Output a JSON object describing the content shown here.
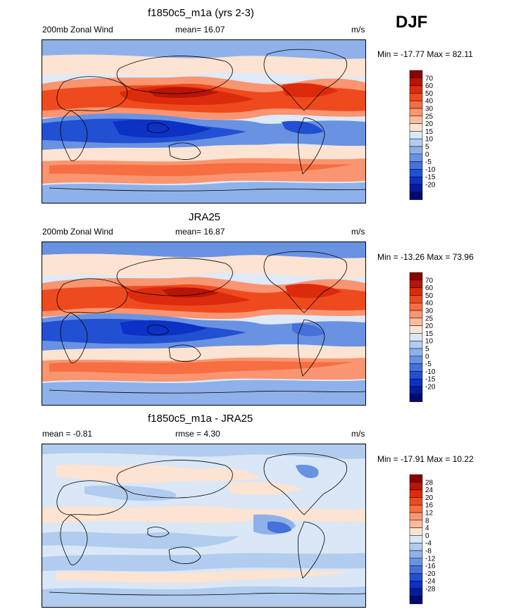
{
  "season": "DJF",
  "panels": [
    {
      "title": "f1850c5_m1a (yrs 2-3)",
      "left_label": "200mb Zonal Wind",
      "center_label": "mean=  16.07",
      "units": "m/s",
      "minmax": "Min = -17.77 Max =  82.11",
      "colorbar": [
        "70",
        "60",
        "50",
        "40",
        "30",
        "25",
        "20",
        "15",
        "10",
        "5",
        "0",
        "-5",
        "-10",
        "-15",
        "-20"
      ],
      "colors": [
        "#8b0000",
        "#b81407",
        "#dc2b0c",
        "#ef4a1e",
        "#f66e42",
        "#f99570",
        "#fcbc9b",
        "#fde3d2",
        "#d9e7f6",
        "#b2ccef",
        "#8eb1ea",
        "#6a92e3",
        "#4670da",
        "#2250d2",
        "#0c31c4",
        "#061c9d",
        "#000a70"
      ]
    },
    {
      "title": "JRA25",
      "left_label": "200mb Zonal Wind",
      "center_label": "mean=  16.87",
      "units": "m/s",
      "minmax": "Min = -13.26 Max =  73.96",
      "colorbar": [
        "70",
        "60",
        "50",
        "40",
        "30",
        "25",
        "20",
        "15",
        "10",
        "5",
        "0",
        "-5",
        "-10",
        "-15",
        "-20"
      ],
      "colors": [
        "#8b0000",
        "#b81407",
        "#dc2b0c",
        "#ef4a1e",
        "#f66e42",
        "#f99570",
        "#fcbc9b",
        "#fde3d2",
        "#d9e7f6",
        "#b2ccef",
        "#8eb1ea",
        "#6a92e3",
        "#4670da",
        "#2250d2",
        "#0c31c4",
        "#061c9d",
        "#000a70"
      ]
    },
    {
      "title": "f1850c5_m1a - JRA25",
      "left_label": "mean =  -0.81",
      "center_label": "rmse =   4.30",
      "units": "m/s",
      "minmax": "Min = -17.91 Max =  10.22",
      "colorbar": [
        "28",
        "24",
        "20",
        "16",
        "12",
        "8",
        "4",
        "0",
        "-4",
        "-8",
        "-12",
        "-16",
        "-20",
        "-24",
        "-28"
      ],
      "colors": [
        "#8b0000",
        "#b81407",
        "#dc2b0c",
        "#ef4a1e",
        "#f66e42",
        "#f99570",
        "#fcbc9b",
        "#fde3d2",
        "#d9e7f6",
        "#b2ccef",
        "#8eb1ea",
        "#6a92e3",
        "#4670da",
        "#2250d2",
        "#0c31c4",
        "#061c9d",
        "#000a70"
      ]
    }
  ]
}
